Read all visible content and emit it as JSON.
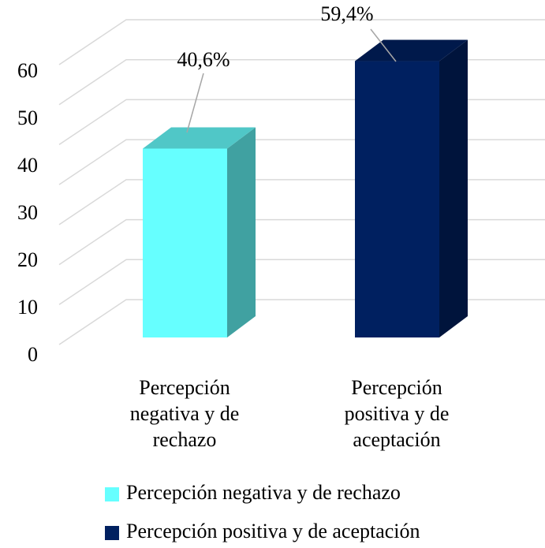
{
  "chart_data": {
    "type": "bar3d",
    "categories": [
      "Percepción negativa y de rechazo",
      "Percepción positiva y de aceptación"
    ],
    "values": [
      40.6,
      59.4
    ],
    "value_labels": [
      "40,6%",
      "59,4%"
    ],
    "colors": [
      "#66ffff",
      "#002060"
    ],
    "ylim": [
      0,
      70
    ],
    "yticks": [
      0,
      10,
      20,
      30,
      40,
      50,
      60
    ],
    "grid": true,
    "legend": "bottom"
  }
}
